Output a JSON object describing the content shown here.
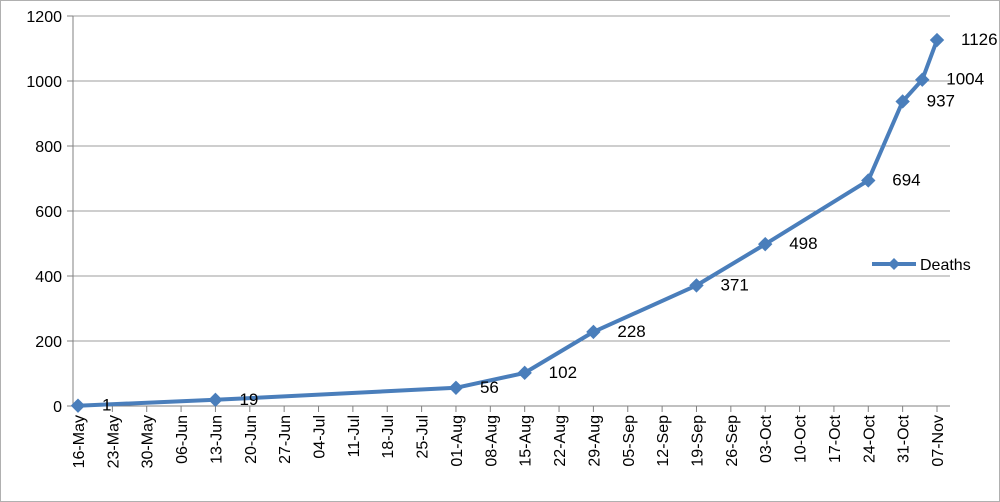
{
  "chart_data": {
    "type": "line",
    "categories": [
      "16-May",
      "23-May",
      "30-May",
      "06-Jun",
      "13-Jun",
      "20-Jun",
      "27-Jun",
      "04-Jul",
      "11-Jul",
      "18-Jul",
      "25-Jul",
      "01-Aug",
      "08-Aug",
      "15-Aug",
      "22-Aug",
      "29-Aug",
      "05-Sep",
      "12-Sep",
      "19-Sep",
      "26-Sep",
      "03-Oct",
      "10-Oct",
      "17-Oct",
      "24-Oct",
      "31-Oct",
      "07-Nov"
    ],
    "series": [
      {
        "name": "Deaths",
        "color": "#4a7ebb",
        "points": [
          {
            "x": "16-May",
            "y": 1
          },
          {
            "x": "13-Jun",
            "y": 19
          },
          {
            "x": "01-Aug",
            "y": 56
          },
          {
            "x": "15-Aug",
            "y": 102
          },
          {
            "x": "29-Aug",
            "y": 228
          },
          {
            "x": "19-Sep",
            "y": 371
          },
          {
            "x": "03-Oct",
            "y": 498
          },
          {
            "x": "24-Oct",
            "y": 694
          },
          {
            "x": "31-Oct",
            "y": 937
          },
          {
            "x": "04-Nov",
            "y": 1004
          },
          {
            "x": "07-Nov",
            "y": 1126
          }
        ],
        "labels": [
          "1",
          "19",
          "56",
          "102",
          "228",
          "371",
          "498",
          "694",
          "937",
          "1004",
          "1126"
        ]
      }
    ],
    "y_ticks": [
      "0",
      "200",
      "400",
      "600",
      "800",
      "1000",
      "1200"
    ],
    "ylim": [
      0,
      1200
    ],
    "grid": true,
    "legend_position": "right"
  }
}
